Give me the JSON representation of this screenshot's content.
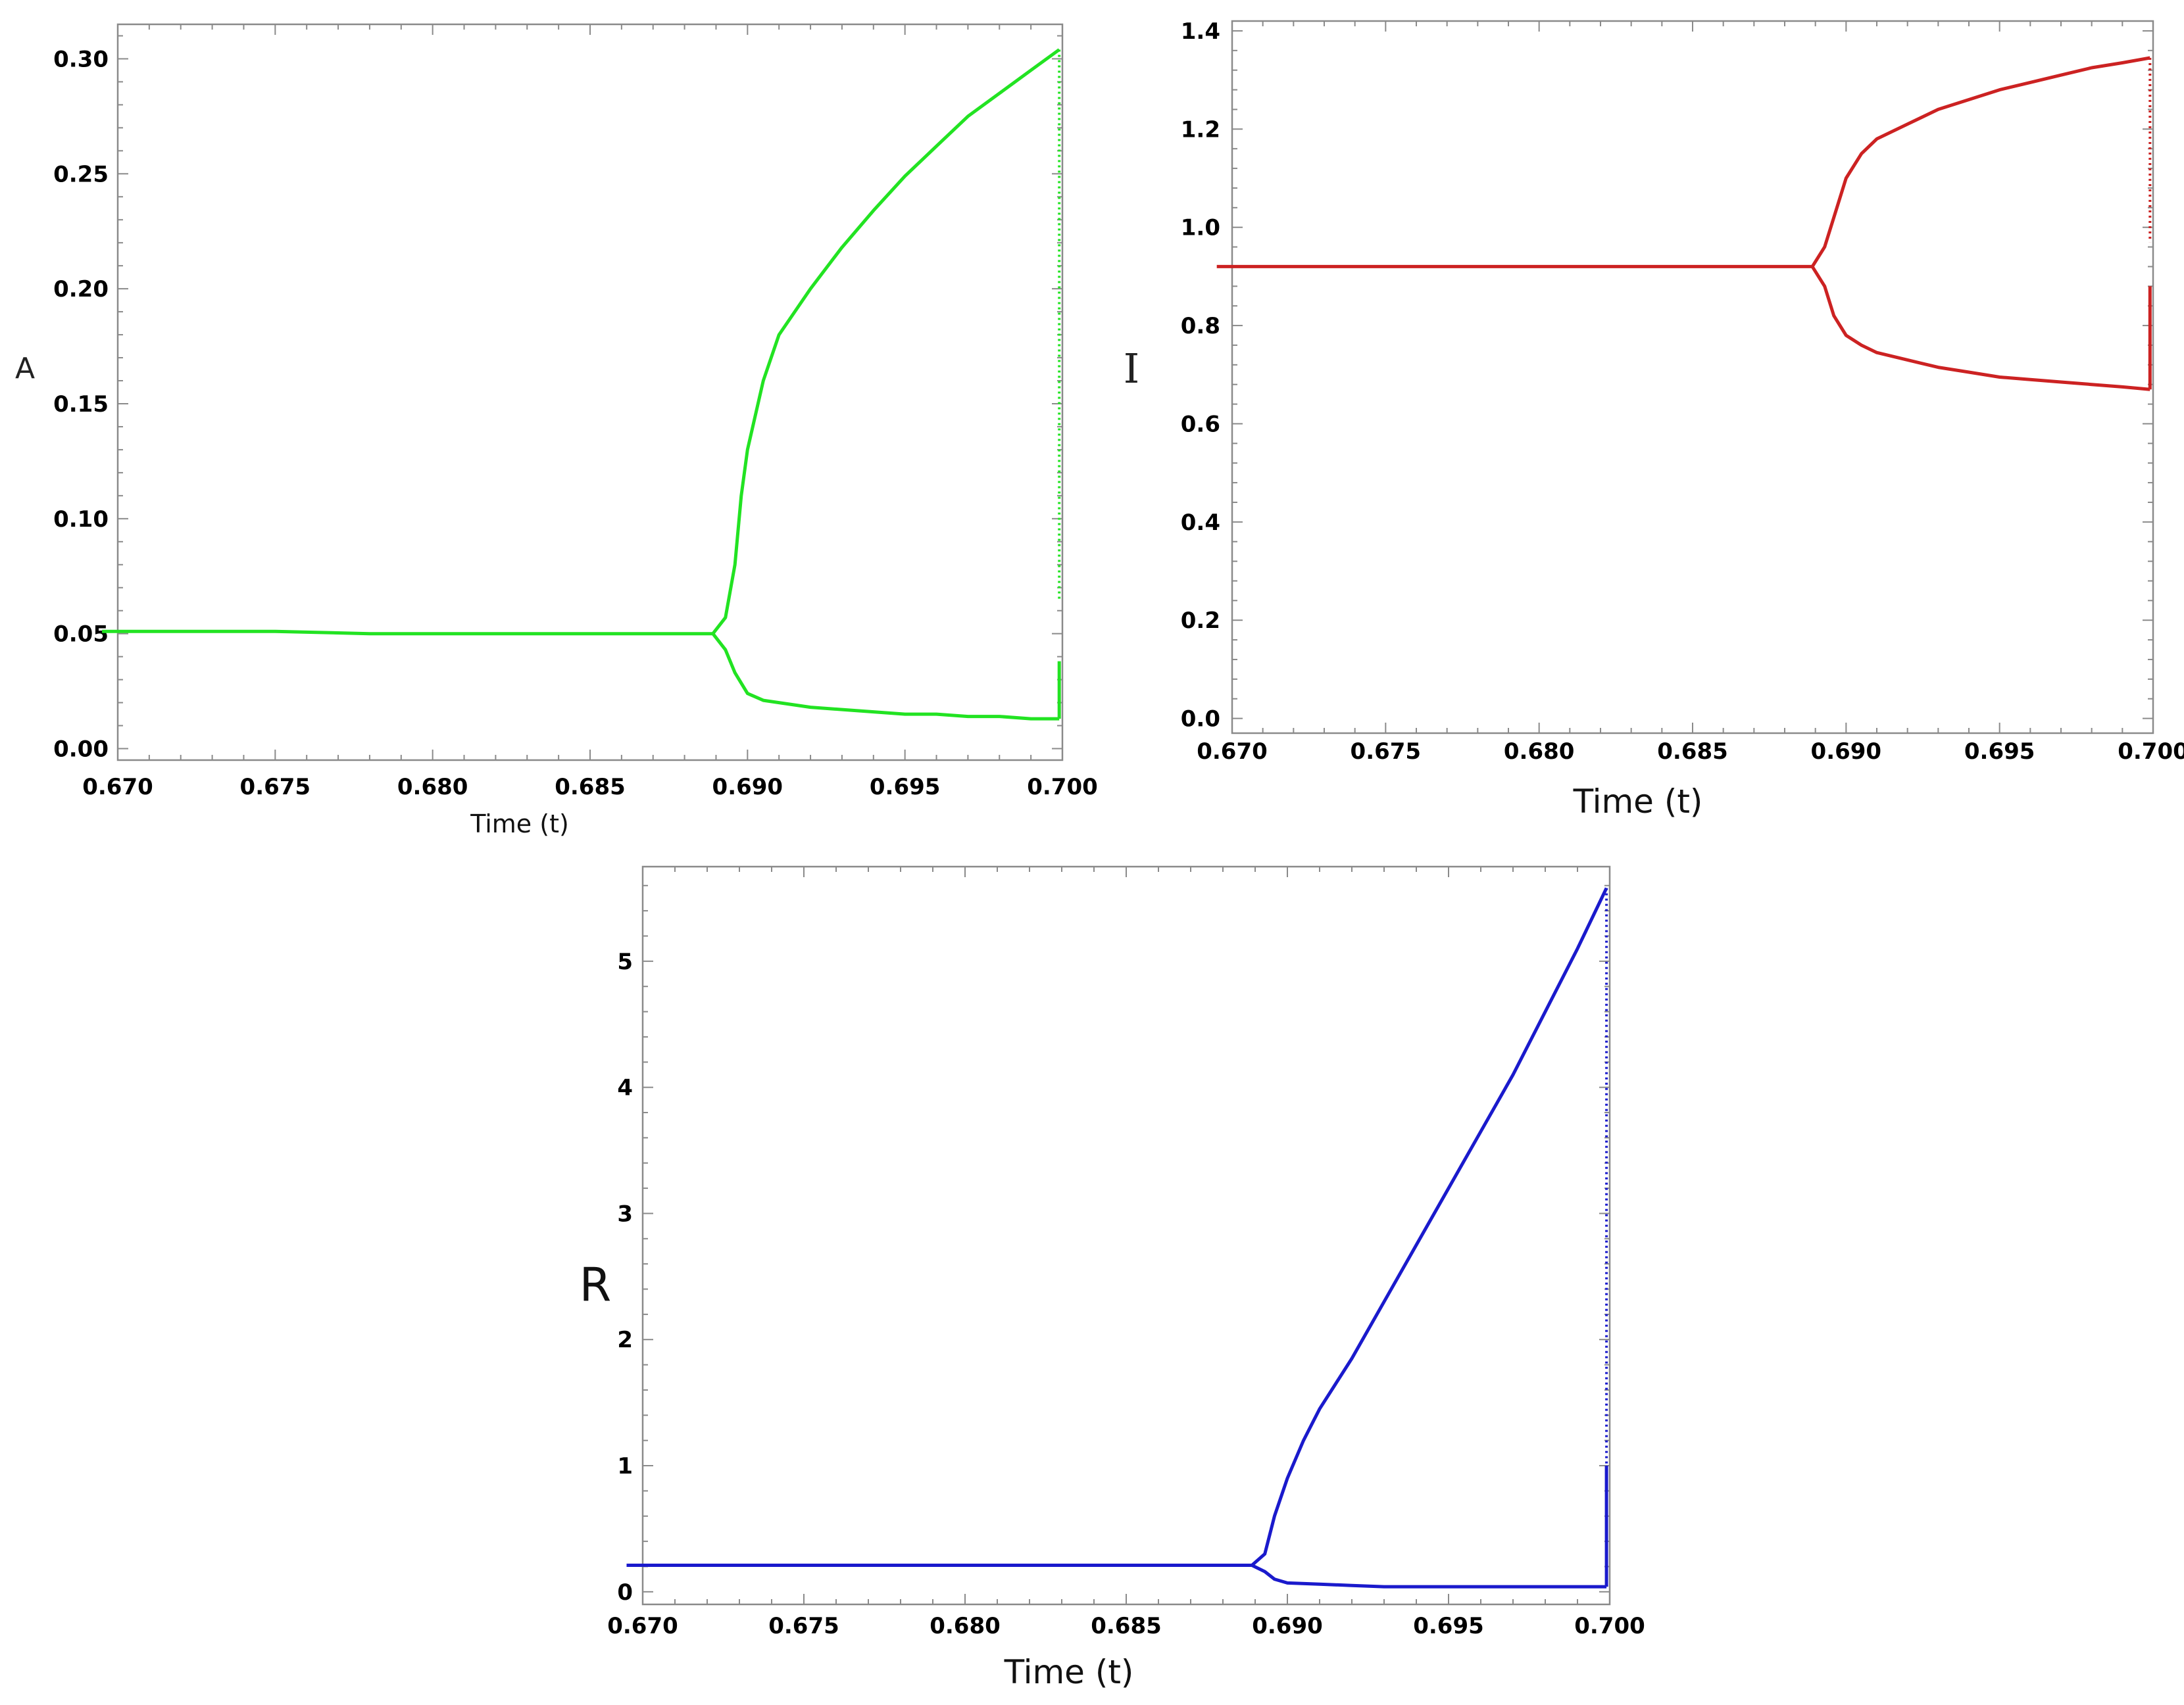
{
  "chart_data": [
    {
      "type": "line",
      "xlabel": "Time (t)",
      "ylabel": "A",
      "xlim": [
        0.67,
        0.7
      ],
      "ylim": [
        -0.005,
        0.315
      ],
      "x_ticks": [
        "0.670",
        "0.675",
        "0.680",
        "0.685",
        "0.690",
        "0.695",
        "0.700"
      ],
      "y_ticks": [
        "0.00",
        "0.05",
        "0.10",
        "0.15",
        "0.20",
        "0.25",
        "0.30"
      ],
      "color": "#22e322",
      "series": [
        {
          "x": [
            0.6695,
            0.675,
            0.678,
            0.685,
            0.6889,
            0.6893,
            0.6896,
            0.6898,
            0.69,
            0.6905,
            0.691,
            0.692,
            0.693,
            0.694,
            0.695,
            0.696,
            0.697,
            0.698,
            0.699,
            0.6999
          ],
          "y": [
            0.051,
            0.051,
            0.05,
            0.05,
            0.05,
            0.057,
            0.08,
            0.11,
            0.13,
            0.16,
            0.18,
            0.2,
            0.218,
            0.234,
            0.249,
            0.262,
            0.275,
            0.285,
            0.295,
            0.304
          ]
        },
        {
          "x": [
            0.6889,
            0.6893,
            0.6896,
            0.69,
            0.6905,
            0.691,
            0.692,
            0.693,
            0.694,
            0.695,
            0.696,
            0.697,
            0.698,
            0.699,
            0.6999
          ],
          "y": [
            0.05,
            0.043,
            0.033,
            0.024,
            0.021,
            0.02,
            0.018,
            0.017,
            0.016,
            0.015,
            0.015,
            0.014,
            0.014,
            0.013,
            0.013
          ]
        },
        {
          "x": [
            0.6999,
            0.6999
          ],
          "y": [
            0.304,
            0.065
          ]
        },
        {
          "x": [
            0.6999,
            0.6999
          ],
          "y": [
            0.013,
            0.038
          ]
        }
      ]
    },
    {
      "type": "line",
      "xlabel": "Time (t)",
      "ylabel": "I",
      "xlim": [
        0.67,
        0.7
      ],
      "ylim": [
        -0.03,
        1.42
      ],
      "x_ticks": [
        "0.670",
        "0.675",
        "0.680",
        "0.685",
        "0.690",
        "0.695",
        "0.700"
      ],
      "y_ticks": [
        "0.0",
        "0.2",
        "0.4",
        "0.6",
        "0.8",
        "1.0",
        "1.2",
        "1.4"
      ],
      "color": "#cc2222",
      "series": [
        {
          "x": [
            0.6695,
            0.675,
            0.68,
            0.685,
            0.6889,
            0.6893,
            0.6896,
            0.69,
            0.6905,
            0.691,
            0.692,
            0.693,
            0.694,
            0.695,
            0.696,
            0.697,
            0.698,
            0.699,
            0.6999
          ],
          "y": [
            0.92,
            0.92,
            0.92,
            0.92,
            0.92,
            0.96,
            1.02,
            1.1,
            1.15,
            1.18,
            1.21,
            1.24,
            1.26,
            1.28,
            1.295,
            1.31,
            1.325,
            1.335,
            1.345
          ]
        },
        {
          "x": [
            0.6889,
            0.6893,
            0.6896,
            0.69,
            0.6905,
            0.691,
            0.692,
            0.693,
            0.694,
            0.695,
            0.696,
            0.697,
            0.698,
            0.699,
            0.6999
          ],
          "y": [
            0.92,
            0.88,
            0.82,
            0.78,
            0.76,
            0.745,
            0.73,
            0.715,
            0.705,
            0.695,
            0.69,
            0.685,
            0.68,
            0.675,
            0.67
          ]
        },
        {
          "x": [
            0.6999,
            0.6999
          ],
          "y": [
            1.345,
            0.97
          ]
        },
        {
          "x": [
            0.6999,
            0.6999
          ],
          "y": [
            0.67,
            0.88
          ]
        }
      ]
    },
    {
      "type": "line",
      "xlabel": "Time (t)",
      "ylabel": "R",
      "xlim": [
        0.67,
        0.7
      ],
      "ylim": [
        -0.1,
        5.75
      ],
      "x_ticks": [
        "0.670",
        "0.675",
        "0.680",
        "0.685",
        "0.690",
        "0.695",
        "0.700"
      ],
      "y_ticks": [
        "0",
        "1",
        "2",
        "3",
        "4",
        "5"
      ],
      "color": "#1a1acc",
      "series": [
        {
          "x": [
            0.6695,
            0.675,
            0.68,
            0.685,
            0.6889,
            0.6893,
            0.6896,
            0.69,
            0.6905,
            0.691,
            0.692,
            0.693,
            0.694,
            0.695,
            0.696,
            0.697,
            0.698,
            0.699,
            0.6999
          ],
          "y": [
            0.21,
            0.21,
            0.21,
            0.21,
            0.21,
            0.3,
            0.6,
            0.9,
            1.2,
            1.45,
            1.85,
            2.3,
            2.75,
            3.2,
            3.65,
            4.1,
            4.6,
            5.1,
            5.58
          ]
        },
        {
          "x": [
            0.6889,
            0.6893,
            0.6896,
            0.69,
            0.691,
            0.692,
            0.693,
            0.694,
            0.695,
            0.696,
            0.697,
            0.698,
            0.699,
            0.6999
          ],
          "y": [
            0.21,
            0.16,
            0.1,
            0.07,
            0.06,
            0.05,
            0.04,
            0.04,
            0.04,
            0.04,
            0.04,
            0.04,
            0.04,
            0.04
          ]
        },
        {
          "x": [
            0.6999,
            0.6999
          ],
          "y": [
            5.58,
            0.33
          ]
        },
        {
          "x": [
            0.6999,
            0.6999
          ],
          "y": [
            0.04,
            1.0
          ]
        }
      ]
    }
  ]
}
